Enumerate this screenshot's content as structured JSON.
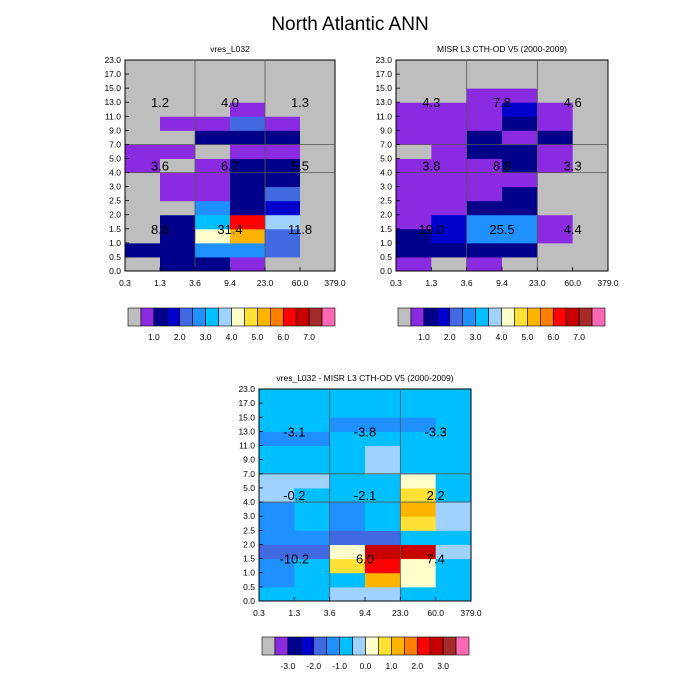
{
  "title": "North Atlantic ANN",
  "palette": {
    "gray": "#BEBEBE",
    "colors": [
      "#8A2BE2",
      "#00008B",
      "#0000CD",
      "#4169E1",
      "#1E90FF",
      "#00BFFF",
      "#A0D2FF",
      "#FFFFCC",
      "#FFE135",
      "#FFB400",
      "#FF7F00",
      "#FF0000",
      "#C80000",
      "#A52A2A",
      "#FF69B4"
    ]
  },
  "chart_data": [
    {
      "type": "heatmap",
      "title": "vres_L032",
      "x_ticks": [
        "0.3",
        "1.3",
        "3.6",
        "9.4",
        "23.0",
        "60.0",
        "379.0"
      ],
      "y_ticks": [
        "0.0",
        "0.5",
        "1.0",
        "1.5",
        "2.0",
        "2.5",
        "3.0",
        "4.0",
        "5.0",
        "7.0",
        "9.0",
        "11.0",
        "13.0",
        "15.0",
        "17.0",
        "23.0"
      ],
      "x_groups": [
        2,
        4
      ],
      "y_groups": [
        7,
        9
      ],
      "group_labels": [
        {
          "col": 0,
          "row": 0,
          "text": "8.8"
        },
        {
          "col": 1,
          "row": 0,
          "text": "31.4"
        },
        {
          "col": 2,
          "row": 0,
          "text": "11.8"
        },
        {
          "col": 0,
          "row": 1,
          "text": "3.6"
        },
        {
          "col": 1,
          "row": 1,
          "text": "6.7"
        },
        {
          "col": 2,
          "row": 1,
          "text": "5.5"
        },
        {
          "col": 0,
          "row": 2,
          "text": "1.2"
        },
        {
          "col": 1,
          "row": 2,
          "text": "4.0"
        },
        {
          "col": 2,
          "row": 2,
          "text": "1.3"
        }
      ],
      "cells": [
        [
          0,
          2,
          2,
          1,
          0,
          0
        ],
        [
          2,
          2,
          5,
          5,
          4,
          0
        ],
        [
          0,
          2,
          8,
          10,
          4,
          0
        ],
        [
          0,
          2,
          6,
          12,
          7,
          0
        ],
        [
          0,
          0,
          5,
          2,
          3,
          0
        ],
        [
          0,
          1,
          1,
          2,
          4,
          0
        ],
        [
          0,
          1,
          1,
          2,
          2,
          0
        ],
        [
          1,
          0,
          1,
          2,
          2,
          0
        ],
        [
          1,
          1,
          0,
          1,
          1,
          0
        ],
        [
          0,
          0,
          2,
          2,
          2,
          0
        ],
        [
          0,
          1,
          1,
          4,
          1,
          0
        ],
        [
          0,
          0,
          0,
          1,
          0,
          0
        ],
        [
          0,
          0,
          0,
          0,
          0,
          0
        ],
        [
          0,
          0,
          0,
          0,
          0,
          0
        ],
        [
          0,
          0,
          0,
          0,
          0,
          0
        ]
      ],
      "colorbar": [
        "1.0",
        "2.0",
        "3.0",
        "4.0",
        "5.0",
        "6.0",
        "7.0"
      ]
    },
    {
      "type": "heatmap",
      "title": "MISR L3 CTH-OD V5 (2000-2009)",
      "x_ticks": [
        "0.3",
        "1.3",
        "3.6",
        "9.4",
        "23.0",
        "60.0",
        "379.0"
      ],
      "y_ticks": [
        "0.0",
        "0.5",
        "1.0",
        "1.5",
        "2.0",
        "2.5",
        "3.0",
        "4.0",
        "5.0",
        "7.0",
        "9.0",
        "11.0",
        "13.0",
        "15.0",
        "17.0",
        "23.0"
      ],
      "x_groups": [
        2,
        4
      ],
      "y_groups": [
        7,
        9
      ],
      "group_labels": [
        {
          "col": 0,
          "row": 0,
          "text": "19.0"
        },
        {
          "col": 1,
          "row": 0,
          "text": "25.5"
        },
        {
          "col": 2,
          "row": 0,
          "text": "4.4"
        },
        {
          "col": 0,
          "row": 1,
          "text": "3.8"
        },
        {
          "col": 1,
          "row": 1,
          "text": "8.8"
        },
        {
          "col": 2,
          "row": 1,
          "text": "3.3"
        },
        {
          "col": 0,
          "row": 2,
          "text": "4.3"
        },
        {
          "col": 1,
          "row": 2,
          "text": "7.8"
        },
        {
          "col": 2,
          "row": 2,
          "text": "4.6"
        }
      ],
      "cells": [
        [
          1,
          0,
          1,
          0,
          0,
          0
        ],
        [
          2,
          2,
          2,
          2,
          0,
          0
        ],
        [
          2,
          3,
          5,
          5,
          1,
          0
        ],
        [
          1,
          3,
          5,
          5,
          1,
          0
        ],
        [
          1,
          1,
          2,
          2,
          0,
          0
        ],
        [
          1,
          1,
          1,
          2,
          0,
          0
        ],
        [
          1,
          1,
          1,
          1,
          0,
          0
        ],
        [
          1,
          1,
          1,
          2,
          1,
          0
        ],
        [
          0,
          1,
          2,
          2,
          1,
          0
        ],
        [
          1,
          1,
          2,
          1,
          2,
          0
        ],
        [
          1,
          1,
          1,
          2,
          1,
          0
        ],
        [
          1,
          1,
          1,
          3,
          1,
          0
        ],
        [
          0,
          0,
          1,
          1,
          0,
          0
        ],
        [
          0,
          0,
          0,
          0,
          0,
          0
        ],
        [
          0,
          0,
          0,
          0,
          0,
          0
        ]
      ],
      "colorbar": [
        "1.0",
        "2.0",
        "3.0",
        "4.0",
        "5.0",
        "6.0",
        "7.0"
      ]
    },
    {
      "type": "heatmap",
      "title": "vres_L032 - MISR L3 CTH-OD V5 (2000-2009)",
      "x_ticks": [
        "0.3",
        "1.3",
        "3.6",
        "9.4",
        "23.0",
        "60.0",
        "379.0"
      ],
      "y_ticks": [
        "0.0",
        "0.5",
        "1.0",
        "1.5",
        "2.0",
        "2.5",
        "3.0",
        "4.0",
        "5.0",
        "7.0",
        "9.0",
        "11.0",
        "13.0",
        "15.0",
        "17.0",
        "23.0"
      ],
      "x_groups": [
        2,
        4
      ],
      "y_groups": [
        7,
        9
      ],
      "group_labels": [
        {
          "col": 0,
          "row": 0,
          "text": "-10.2"
        },
        {
          "col": 1,
          "row": 0,
          "text": "6.0"
        },
        {
          "col": 2,
          "row": 0,
          "text": "7.4"
        },
        {
          "col": 0,
          "row": 1,
          "text": "-0.2"
        },
        {
          "col": 1,
          "row": 1,
          "text": "-2.1"
        },
        {
          "col": 2,
          "row": 1,
          "text": "2.2"
        },
        {
          "col": 0,
          "row": 2,
          "text": "-3.1"
        },
        {
          "col": 1,
          "row": 2,
          "text": "-3.8"
        },
        {
          "col": 2,
          "row": 2,
          "text": "-3.3"
        }
      ],
      "cells": [
        [
          6,
          6,
          7,
          7,
          6,
          6
        ],
        [
          5,
          6,
          6,
          10,
          8,
          6
        ],
        [
          5,
          6,
          9,
          12,
          8,
          6
        ],
        [
          4,
          4,
          8,
          13,
          13,
          7
        ],
        [
          5,
          5,
          4,
          4,
          6,
          6
        ],
        [
          5,
          6,
          5,
          6,
          9,
          7
        ],
        [
          5,
          6,
          5,
          6,
          10,
          7
        ],
        [
          7,
          6,
          6,
          6,
          9,
          6
        ],
        [
          7,
          7,
          6,
          6,
          8,
          6
        ],
        [
          6,
          6,
          6,
          7,
          6,
          6
        ],
        [
          6,
          6,
          6,
          7,
          6,
          6
        ],
        [
          5,
          5,
          6,
          6,
          6,
          6
        ],
        [
          6,
          6,
          5,
          5,
          5,
          6
        ],
        [
          6,
          6,
          6,
          6,
          6,
          6
        ],
        [
          6,
          6,
          6,
          6,
          6,
          6
        ]
      ],
      "colorbar": [
        "-3.0",
        "-2.0",
        "-1.0",
        "0.0",
        "1.0",
        "2.0",
        "3.0"
      ]
    }
  ]
}
